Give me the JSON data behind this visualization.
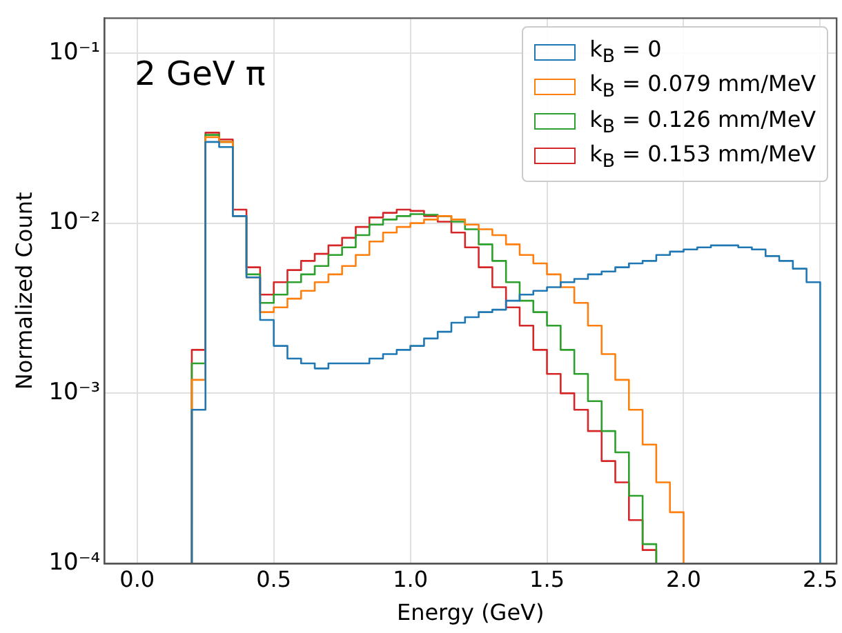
{
  "chart_data": {
    "type": "histogram",
    "xlabel": "Energy (GeV)",
    "ylabel": "Normalized Count",
    "annotations": [
      "2 GeV π"
    ],
    "bins": [
      0.2,
      0.25,
      0.3,
      0.35,
      0.4,
      0.45,
      0.5,
      0.55,
      0.6,
      0.65,
      0.7,
      0.75,
      0.8,
      0.85,
      0.9,
      0.95,
      1.0,
      1.05,
      1.1,
      1.15,
      1.2,
      1.25,
      1.3,
      1.35,
      1.4,
      1.45,
      1.5,
      1.55,
      1.6,
      1.65,
      1.7,
      1.75,
      1.8,
      1.85,
      1.9,
      1.95,
      2.0,
      2.05,
      2.1,
      2.15,
      2.2,
      2.25,
      2.3,
      2.35,
      2.4,
      2.45,
      2.5
    ],
    "series": [
      {
        "name": "k$_{B}$ = 0",
        "color": "#1f77b4",
        "values": [
          0.0008,
          0.03,
          0.028,
          0.011,
          0.0048,
          0.0027,
          0.0019,
          0.0016,
          0.0015,
          0.0014,
          0.0015,
          0.0015,
          0.0015,
          0.0016,
          0.0017,
          0.0018,
          0.0019,
          0.0021,
          0.0023,
          0.0026,
          0.0028,
          0.003,
          0.0031,
          0.0035,
          0.0038,
          0.004,
          0.0042,
          0.0045,
          0.0047,
          0.005,
          0.0052,
          0.0055,
          0.0058,
          0.006,
          0.0065,
          0.0068,
          0.007,
          0.0072,
          0.0074,
          0.0074,
          0.0072,
          0.007,
          0.0064,
          0.006,
          0.0054,
          0.0045
        ]
      },
      {
        "name": "k$_{B}$ = 0.079 mm/MeV",
        "color": "#ff7f0e",
        "values": [
          0.0012,
          0.032,
          0.03,
          0.011,
          0.0048,
          0.003,
          0.0032,
          0.0036,
          0.004,
          0.0045,
          0.005,
          0.0056,
          0.0065,
          0.0078,
          0.0088,
          0.0095,
          0.01,
          0.0105,
          0.011,
          0.0105,
          0.0098,
          0.0092,
          0.0085,
          0.0075,
          0.0065,
          0.0058,
          0.005,
          0.0042,
          0.0034,
          0.0025,
          0.0017,
          0.0012,
          0.0008,
          0.0005,
          0.0003,
          0.0002,
          null,
          null,
          null,
          null,
          null,
          null,
          null,
          null,
          null,
          null
        ]
      },
      {
        "name": "k$_{B}$ = 0.126 mm/MeV",
        "color": "#2ca02c",
        "values": [
          0.0015,
          0.033,
          0.03,
          0.011,
          0.005,
          0.0034,
          0.0038,
          0.0045,
          0.005,
          0.0056,
          0.0065,
          0.0072,
          0.0085,
          0.0098,
          0.0105,
          0.011,
          0.0113,
          0.0112,
          0.011,
          0.0102,
          0.0092,
          0.0075,
          0.006,
          0.0045,
          0.0035,
          0.003,
          0.0025,
          0.0018,
          0.0013,
          0.0009,
          0.0006,
          0.00045,
          0.00025,
          0.00013,
          null,
          null,
          null,
          null,
          null,
          null,
          null,
          null,
          null,
          null,
          null,
          null
        ]
      },
      {
        "name": "k$_{B}$ = 0.153 mm/MeV",
        "color": "#d62728",
        "values": [
          0.0018,
          0.034,
          0.031,
          0.012,
          0.0055,
          0.0038,
          0.0045,
          0.0053,
          0.006,
          0.0066,
          0.0074,
          0.0082,
          0.0095,
          0.0108,
          0.0115,
          0.012,
          0.0118,
          0.011,
          0.0102,
          0.0088,
          0.0072,
          0.0055,
          0.0042,
          0.0032,
          0.0025,
          0.0018,
          0.0013,
          0.001,
          0.0008,
          0.0006,
          0.0004,
          0.0003,
          0.00018,
          0.00012,
          null,
          null,
          null,
          null,
          null,
          null,
          null,
          null,
          null,
          null,
          null,
          null
        ]
      }
    ],
    "xlim": [
      -0.12,
      2.56
    ],
    "xticks": [
      {
        "value": 0,
        "label": "0.0"
      },
      {
        "value": 0.5,
        "label": "0.5"
      },
      {
        "value": 1,
        "label": "1.0"
      },
      {
        "value": 1.5,
        "label": "1.5"
      },
      {
        "value": 2,
        "label": "2.0"
      },
      {
        "value": 2.5,
        "label": "2.5"
      }
    ],
    "ylim": [
      0.0001,
      0.16
    ],
    "yticks": [
      {
        "value": 0.0001,
        "label": "10⁻⁴"
      },
      {
        "value": 0.001,
        "label": "10⁻³"
      },
      {
        "value": 0.01,
        "label": "10⁻²"
      },
      {
        "value": 0.1,
        "label": "10⁻¹"
      }
    ],
    "log": "y",
    "grid": true,
    "legend": "top right",
    "line_style": "solid",
    "marker": "none"
  }
}
